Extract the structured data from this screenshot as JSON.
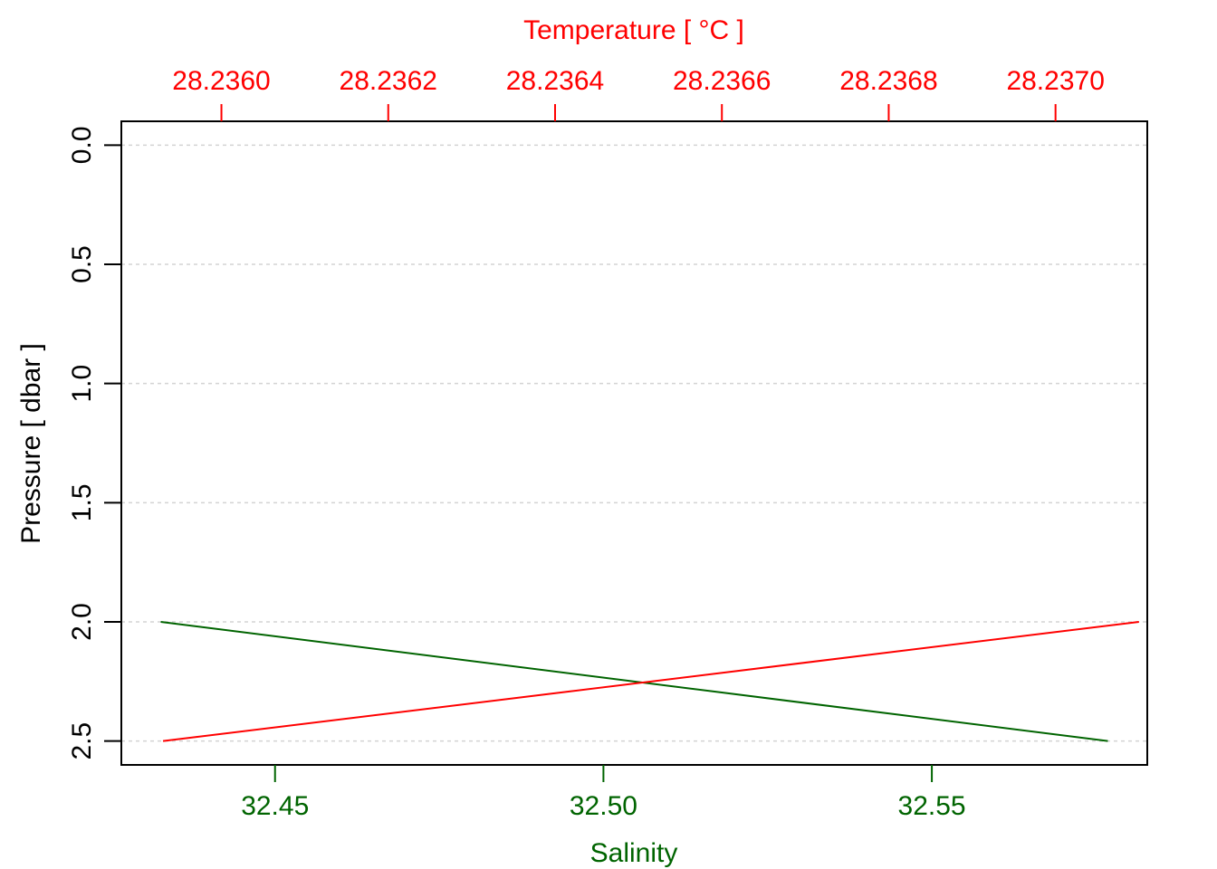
{
  "chart_data": {
    "type": "line",
    "top_axis": {
      "label": "Temperature [ °C ]",
      "color": "#ff0000",
      "range": [
        28.23588,
        28.23711
      ],
      "ticks": [
        28.236,
        28.2362,
        28.2364,
        28.2366,
        28.2368,
        28.237
      ],
      "tick_labels": [
        "28.2360",
        "28.2362",
        "28.2364",
        "28.2366",
        "28.2368",
        "28.2370"
      ]
    },
    "bottom_axis": {
      "label": "Salinity",
      "color": "#006400",
      "range": [
        32.4266,
        32.5828
      ],
      "ticks": [
        32.45,
        32.5,
        32.55
      ],
      "tick_labels": [
        "32.45",
        "32.50",
        "32.55"
      ]
    },
    "y_axis": {
      "label": "Pressure [ dbar ]",
      "color": "#000000",
      "range": [
        -0.1,
        2.6
      ],
      "inverted": true,
      "ticks": [
        0.0,
        0.5,
        1.0,
        1.5,
        2.0,
        2.5
      ],
      "tick_labels": [
        "0.0",
        "0.5",
        "1.0",
        "1.5",
        "2.0",
        "2.5"
      ]
    },
    "grid": true,
    "series": [
      {
        "axis": "bottom",
        "color": "#006400",
        "points": [
          {
            "x": 32.4326,
            "y": 2.0
          },
          {
            "x": 32.5768,
            "y": 2.5
          }
        ]
      },
      {
        "axis": "top",
        "color": "#ff0000",
        "points": [
          {
            "x": 28.2371,
            "y": 2.0
          },
          {
            "x": 28.23593,
            "y": 2.5
          }
        ]
      }
    ]
  }
}
